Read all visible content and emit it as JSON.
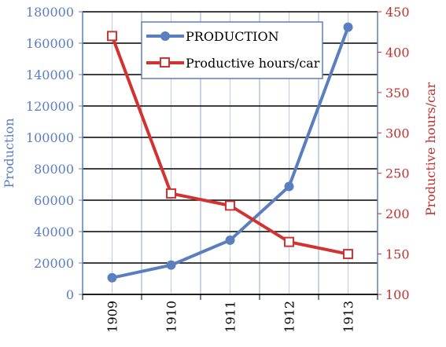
{
  "chart_data": {
    "type": "line",
    "categories": [
      "1909",
      "1910",
      "1911",
      "1912",
      "1913"
    ],
    "series": [
      {
        "name": "PRODUCTION",
        "axis": "left",
        "values": [
          10607,
          18664,
          34528,
          68773,
          170211
        ],
        "color": "#5b7ec1",
        "marker": "circle"
      },
      {
        "name": "Productive hours/car",
        "axis": "right",
        "values": [
          420,
          225,
          210,
          165,
          150
        ],
        "color": "#d23330",
        "marker": "square-open"
      }
    ],
    "ylabel": "Production",
    "y2label": "Productive hours/car",
    "ylim": [
      0,
      180000
    ],
    "y2lim": [
      100,
      450
    ],
    "yticks": [
      "0",
      "20000",
      "40000",
      "60000",
      "80000",
      "100000",
      "120000",
      "140000",
      "160000",
      "180000"
    ],
    "y2ticks": [
      "100",
      "150",
      "200",
      "250",
      "300",
      "350",
      "400",
      "450"
    ],
    "grid": true,
    "legend": "top-center",
    "colors": {
      "left_axis": "#5b7ec1",
      "right_axis": "#c0302e",
      "grid_h": "#000000",
      "grid_v": "#8ea4d2"
    }
  }
}
